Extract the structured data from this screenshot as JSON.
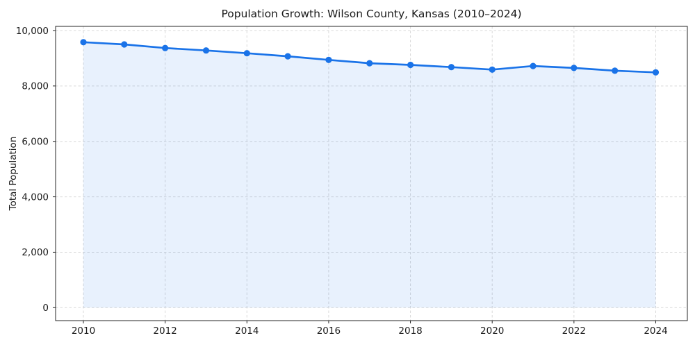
{
  "chart_data": {
    "type": "area",
    "title": "Population Growth: Wilson County, Kansas (2010–2024)",
    "xlabel": "",
    "ylabel": "Total Population",
    "x": [
      2010,
      2011,
      2012,
      2013,
      2014,
      2015,
      2016,
      2017,
      2018,
      2019,
      2020,
      2021,
      2022,
      2023,
      2024
    ],
    "values": [
      9580,
      9500,
      9370,
      9280,
      9180,
      9070,
      8940,
      8820,
      8760,
      8680,
      8590,
      8720,
      8650,
      8550,
      8490
    ],
    "series_name": "Total Population",
    "ylim": [
      0,
      10000
    ],
    "yticks": [
      0,
      2000,
      4000,
      6000,
      8000,
      10000
    ],
    "ytick_labels": [
      "0",
      "2,000",
      "4,000",
      "6,000",
      "8,000",
      "10,000"
    ],
    "xticks": [
      2010,
      2012,
      2014,
      2016,
      2018,
      2020,
      2022,
      2024
    ],
    "xtick_labels": [
      "2010",
      "2012",
      "2014",
      "2016",
      "2018",
      "2020",
      "2022",
      "2024"
    ],
    "grid": true,
    "legend": false,
    "line_color": "#1a73e8",
    "marker_color": "#1a73e8",
    "fill_color": "rgba(26,115,232,0.10)",
    "grid_color": "#d9d9d9",
    "spine_color": "#262626",
    "text_color": "#1a1a1a",
    "background_color": "#ffffff"
  }
}
